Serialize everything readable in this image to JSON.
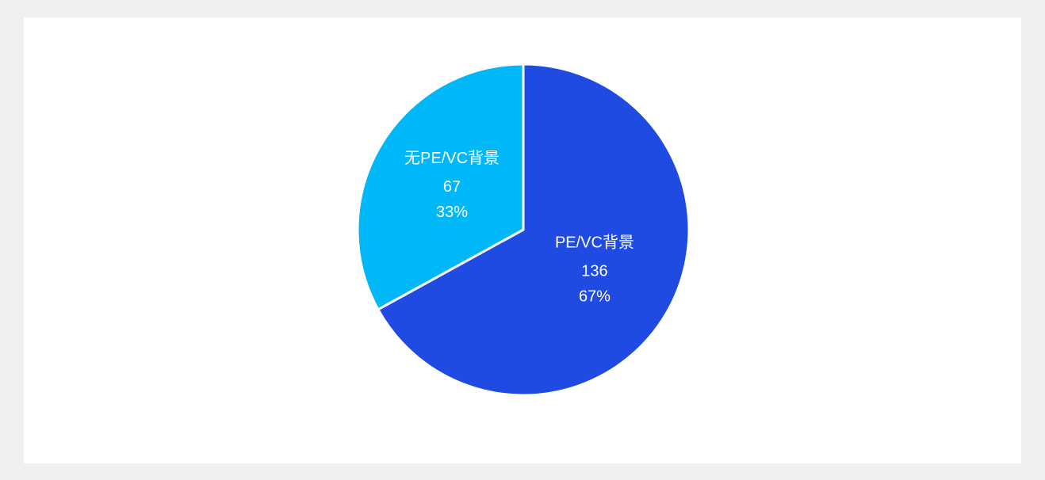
{
  "chart_data": {
    "type": "pie",
    "categories": [
      "PE/VC背景",
      "无PE/VC背景"
    ],
    "values": [
      136,
      67
    ],
    "percentages": [
      67,
      33
    ],
    "percentage_labels": [
      "67%",
      "33%"
    ],
    "colors": [
      "#1f4be3",
      "#00b7f7"
    ]
  }
}
